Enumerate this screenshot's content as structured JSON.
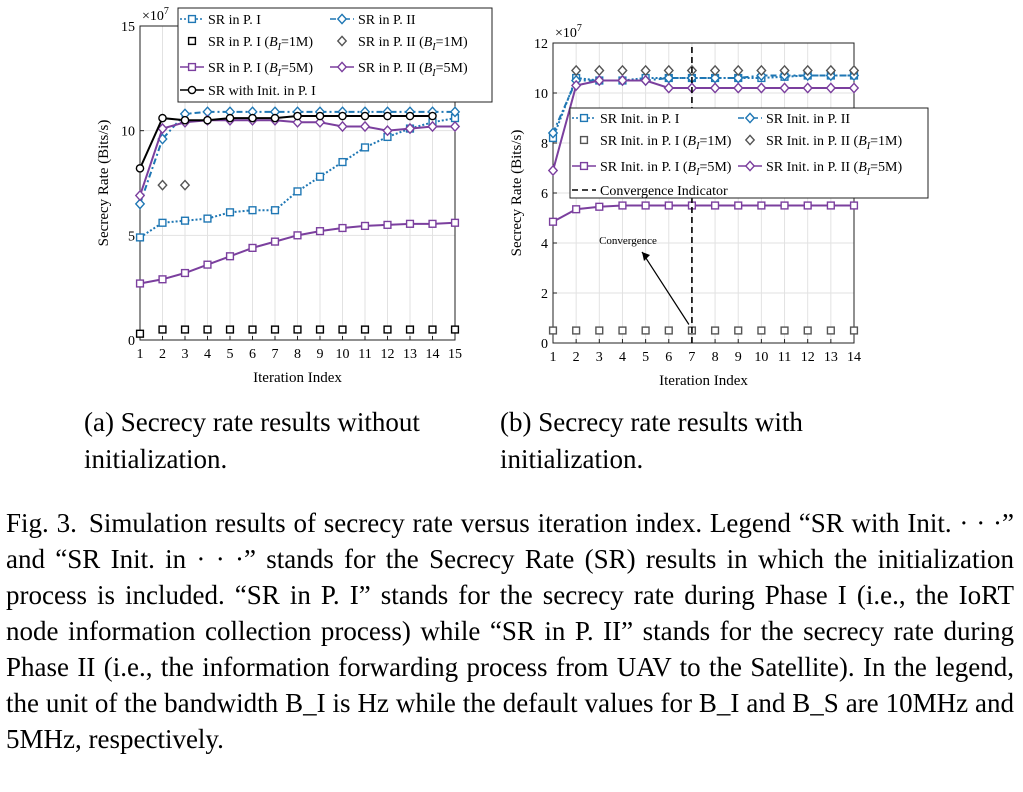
{
  "subcaptions": {
    "a": "(a) Secrecy rate results without initialization.",
    "b": "(b) Secrecy rate results with initialization."
  },
  "caption": {
    "label": "Fig. 3.",
    "text": "Simulation results of secrecy rate versus iteration index. Legend “SR with Init. · · ·” and “SR Init. in · · ·” stands for the Secrecy Rate (SR) results in which the initialization process is included. “SR in P. I” stands for the secrecy rate during Phase I (i.e., the IoRT node information collection process) while “SR in P. II” stands for the secrecy rate during Phase II (i.e., the information forwarding process from UAV to the Satellite). In the legend, the unit of the bandwidth B_I is Hz while the default values for B_I and B_S are 10MHz and 5MHz, respectively."
  },
  "chart_data": [
    {
      "type": "line",
      "xlabel": "Iteration Index",
      "ylabel": "Secrecy Rate (Bits/s)",
      "y_multiplier": "×10^7",
      "xlim": [
        1,
        15
      ],
      "ylim": [
        0,
        15
      ],
      "xticks": [
        1,
        2,
        3,
        4,
        5,
        6,
        7,
        8,
        9,
        10,
        11,
        12,
        13,
        14,
        15
      ],
      "yticks": [
        0,
        5,
        10,
        15
      ],
      "grid": true,
      "legend_position": "top",
      "series": [
        {
          "name": "SR in P. I",
          "color": "#1f77b4",
          "style": "dotted",
          "marker": "square",
          "x": [
            1,
            2,
            3,
            4,
            5,
            6,
            7,
            8,
            9,
            10,
            11,
            12,
            13,
            14,
            15
          ],
          "y": [
            4.9,
            5.6,
            5.7,
            5.8,
            6.1,
            6.2,
            6.2,
            7.1,
            7.8,
            8.5,
            9.2,
            9.7,
            10.1,
            10.4,
            10.6
          ]
        },
        {
          "name": "SR in P. II",
          "color": "#1f77b4",
          "style": "dashdot",
          "marker": "diamond",
          "x": [
            1,
            2,
            3,
            4,
            5,
            6,
            7,
            8,
            9,
            10,
            11,
            12,
            13,
            14,
            15
          ],
          "y": [
            6.5,
            9.6,
            10.8,
            10.9,
            10.9,
            10.9,
            10.9,
            10.9,
            10.9,
            10.9,
            10.9,
            10.9,
            10.9,
            10.9,
            10.9
          ]
        },
        {
          "name": "SR in P. I (B_I=1M)",
          "color": "#000000",
          "style": "none",
          "marker": "square",
          "x": [
            1,
            2,
            3,
            4,
            5,
            6,
            7,
            8,
            9,
            10,
            11,
            12,
            13,
            14,
            15
          ],
          "y": [
            0.3,
            0.5,
            0.5,
            0.5,
            0.5,
            0.5,
            0.5,
            0.5,
            0.5,
            0.5,
            0.5,
            0.5,
            0.5,
            0.5,
            0.5
          ]
        },
        {
          "name": "SR in P. II (B_I=1M)",
          "color": "#555555",
          "style": "none",
          "marker": "diamond",
          "x": [
            2,
            3
          ],
          "y": [
            7.4,
            7.4
          ]
        },
        {
          "name": "SR in P. I (B_I=5M)",
          "color": "#7b3f9e",
          "style": "solid",
          "marker": "square",
          "x": [
            1,
            2,
            3,
            4,
            5,
            6,
            7,
            8,
            9,
            10,
            11,
            12,
            13,
            14,
            15
          ],
          "y": [
            2.7,
            2.9,
            3.2,
            3.6,
            4.0,
            4.4,
            4.7,
            5.0,
            5.2,
            5.35,
            5.45,
            5.5,
            5.55,
            5.55,
            5.6
          ]
        },
        {
          "name": "SR in P. II (B_I=5M)",
          "color": "#7b3f9e",
          "style": "solid",
          "marker": "diamond",
          "x": [
            1,
            2,
            3,
            4,
            5,
            6,
            7,
            8,
            9,
            10,
            11,
            12,
            13,
            14,
            15
          ],
          "y": [
            6.9,
            10.1,
            10.4,
            10.5,
            10.5,
            10.5,
            10.5,
            10.4,
            10.4,
            10.2,
            10.2,
            10.0,
            10.1,
            10.2,
            10.2
          ]
        },
        {
          "name": "SR with Init. in P. I",
          "color": "#000000",
          "style": "solid",
          "marker": "circle",
          "x": [
            1,
            2,
            3,
            4,
            5,
            6,
            7,
            8,
            9,
            10,
            11,
            12,
            13,
            14
          ],
          "y": [
            8.2,
            10.6,
            10.5,
            10.5,
            10.6,
            10.6,
            10.6,
            10.7,
            10.7,
            10.7,
            10.7,
            10.7,
            10.7,
            10.7
          ]
        }
      ]
    },
    {
      "type": "line",
      "xlabel": "Iteration Index",
      "ylabel": "Secrecy Rate (Bits/s)",
      "y_multiplier": "×10^7",
      "xlim": [
        1,
        14
      ],
      "ylim": [
        0,
        12
      ],
      "xticks": [
        1,
        2,
        3,
        4,
        5,
        6,
        7,
        8,
        9,
        10,
        11,
        12,
        13,
        14
      ],
      "yticks": [
        0,
        2,
        4,
        6,
        8,
        10,
        12
      ],
      "grid": true,
      "legend_position": "middle",
      "annotation": {
        "text": "Convergence",
        "x": 7,
        "y": 0.5
      },
      "convergence_x": 7,
      "series": [
        {
          "name": "SR Init. in P. I",
          "color": "#1f77b4",
          "style": "dotted",
          "marker": "square",
          "x": [
            1,
            2,
            3,
            4,
            5,
            6,
            7,
            8,
            9,
            10,
            11,
            12,
            13,
            14
          ],
          "y": [
            8.2,
            10.6,
            10.5,
            10.5,
            10.6,
            10.6,
            10.6,
            10.6,
            10.6,
            10.6,
            10.65,
            10.7,
            10.7,
            10.7
          ]
        },
        {
          "name": "SR Init. in P. II",
          "color": "#1f77b4",
          "style": "dashdot",
          "marker": "diamond",
          "x": [
            1,
            2,
            3,
            4,
            5,
            6,
            7,
            8,
            9,
            10,
            11,
            12,
            13,
            14
          ],
          "y": [
            8.4,
            10.5,
            10.5,
            10.5,
            10.5,
            10.6,
            10.6,
            10.6,
            10.6,
            10.7,
            10.7,
            10.7,
            10.7,
            10.7
          ]
        },
        {
          "name": "SR Init. in P. I (B_I=1M)",
          "color": "#555555",
          "style": "none",
          "marker": "square",
          "x": [
            1,
            2,
            3,
            4,
            5,
            6,
            7,
            8,
            9,
            10,
            11,
            12,
            13,
            14
          ],
          "y": [
            0.5,
            0.5,
            0.5,
            0.5,
            0.5,
            0.5,
            0.5,
            0.5,
            0.5,
            0.5,
            0.5,
            0.5,
            0.5,
            0.5
          ]
        },
        {
          "name": "SR Init. in P. II (B_I=1M)",
          "color": "#555555",
          "style": "none",
          "marker": "diamond",
          "x": [
            2,
            3,
            4,
            5,
            6,
            7,
            8,
            9,
            10,
            11,
            12,
            13,
            14
          ],
          "y": [
            10.9,
            10.9,
            10.9,
            10.9,
            10.9,
            10.9,
            10.9,
            10.9,
            10.9,
            10.9,
            10.9,
            10.9,
            10.9
          ]
        },
        {
          "name": "SR Init. in P. I (B_I=5M)",
          "color": "#7b3f9e",
          "style": "solid",
          "marker": "square",
          "x": [
            1,
            2,
            3,
            4,
            5,
            6,
            7,
            8,
            9,
            10,
            11,
            12,
            13,
            14
          ],
          "y": [
            4.85,
            5.35,
            5.45,
            5.5,
            5.5,
            5.5,
            5.5,
            5.5,
            5.5,
            5.5,
            5.5,
            5.5,
            5.5,
            5.5
          ]
        },
        {
          "name": "SR Init. in P. II (B_I=5M)",
          "color": "#7b3f9e",
          "style": "solid",
          "marker": "diamond",
          "x": [
            1,
            2,
            3,
            4,
            5,
            6,
            7,
            8,
            9,
            10,
            11,
            12,
            13,
            14
          ],
          "y": [
            6.9,
            10.3,
            10.5,
            10.5,
            10.5,
            10.2,
            10.2,
            10.2,
            10.2,
            10.2,
            10.2,
            10.2,
            10.2,
            10.2
          ]
        },
        {
          "name": "Convergence Indicator",
          "color": "#000000",
          "style": "dashed",
          "marker": "none",
          "x": [
            7,
            7
          ],
          "y": [
            0,
            12
          ]
        }
      ]
    }
  ]
}
